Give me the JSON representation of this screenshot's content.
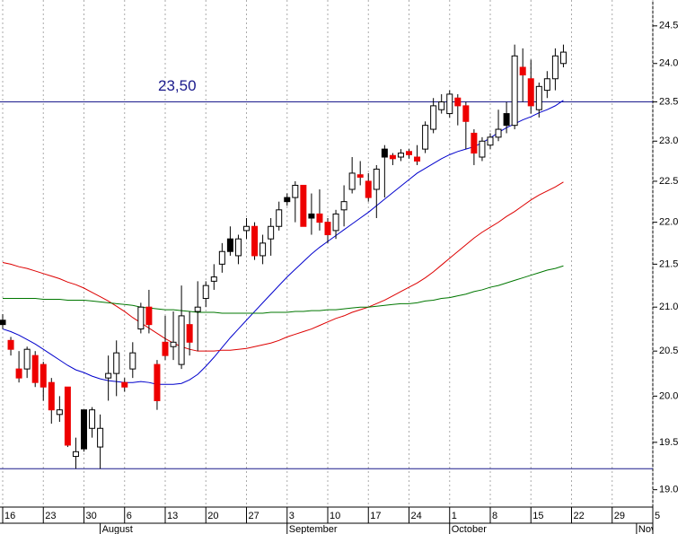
{
  "chart_data": {
    "type": "candlestick",
    "categories": [
      "16",
      null,
      null,
      null,
      null,
      "23",
      null,
      null,
      null,
      null,
      "30",
      null,
      null,
      null,
      null,
      "6",
      null,
      null,
      null,
      null,
      "13",
      null,
      null,
      null,
      null,
      "20",
      null,
      null,
      null,
      null,
      "27",
      null,
      null,
      null,
      null,
      "3",
      null,
      null,
      null,
      null,
      "10",
      null,
      null,
      null,
      null,
      "17",
      null,
      null,
      null,
      null,
      "24",
      null,
      null,
      null,
      null,
      "1",
      null,
      null,
      null,
      null,
      "8",
      null,
      null,
      null,
      null,
      "15",
      null,
      null,
      null,
      null,
      "22",
      null,
      null,
      null,
      null,
      "29",
      null,
      null,
      null,
      null,
      "5"
    ],
    "months": [
      {
        "label": "August",
        "index": 12
      },
      {
        "label": "September",
        "index": 35
      },
      {
        "label": "October",
        "index": 55
      },
      {
        "label": "November",
        "index": 78
      }
    ],
    "open": [
      20.85,
      20.62,
      20.3,
      20.3,
      20.45,
      20.35,
      20.15,
      19.8,
      20.1,
      19.35,
      19.85,
      19.65,
      19.45,
      20.2,
      20.25,
      20.15,
      20.3,
      20.75,
      21.0,
      20.35,
      20.6,
      20.55,
      20.35,
      20.8,
      20.95,
      21.1,
      21.3,
      21.5,
      21.8,
      21.6,
      21.9,
      21.95,
      21.6,
      21.8,
      21.95,
      22.3,
      22.3,
      22.45,
      22.1,
      22.1,
      22.0,
      21.9,
      22.15,
      22.4,
      22.58,
      22.5,
      22.4,
      22.9,
      22.82,
      22.8,
      22.87,
      22.8,
      22.9,
      23.15,
      23.4,
      23.35,
      23.55,
      23.45,
      23.1,
      22.8,
      22.95,
      23.05,
      23.35,
      23.2,
      23.95,
      23.8,
      23.4,
      23.65,
      23.8,
      24.0,
      null,
      null,
      null,
      null,
      null,
      null,
      null,
      null,
      null,
      null,
      null
    ],
    "high": [
      20.92,
      20.66,
      20.5,
      20.55,
      20.5,
      20.38,
      20.2,
      20.0,
      20.1,
      19.55,
      19.85,
      19.88,
      19.8,
      20.45,
      20.62,
      20.2,
      20.6,
      21.05,
      21.2,
      20.4,
      20.9,
      20.95,
      21.25,
      20.95,
      21.3,
      21.3,
      21.5,
      21.75,
      21.95,
      21.85,
      22.05,
      22.0,
      21.85,
      22.05,
      22.25,
      22.35,
      22.5,
      22.45,
      22.35,
      22.4,
      22.05,
      22.15,
      22.45,
      22.8,
      22.75,
      22.6,
      22.7,
      22.95,
      22.85,
      22.9,
      22.9,
      22.95,
      23.25,
      23.55,
      23.6,
      23.65,
      23.6,
      23.5,
      23.15,
      23.05,
      23.1,
      23.4,
      23.5,
      24.25,
      24.2,
      24.05,
      23.75,
      23.9,
      24.2,
      24.25,
      null,
      null,
      null,
      null,
      null,
      null,
      null,
      null,
      null,
      null,
      null
    ],
    "low": [
      20.75,
      20.45,
      20.15,
      20.2,
      20.1,
      19.95,
      19.7,
      19.72,
      19.45,
      19.22,
      19.4,
      19.55,
      19.22,
      19.95,
      20.0,
      20.05,
      20.2,
      20.7,
      20.7,
      19.85,
      20.4,
      20.4,
      20.3,
      20.45,
      20.5,
      21.0,
      21.2,
      21.4,
      21.6,
      21.5,
      21.8,
      21.55,
      21.5,
      21.6,
      21.9,
      22.2,
      22.0,
      21.95,
      21.85,
      21.9,
      21.75,
      21.8,
      21.95,
      22.35,
      22.45,
      22.25,
      22.05,
      22.3,
      22.7,
      22.75,
      22.78,
      22.7,
      22.85,
      23.1,
      23.35,
      23.3,
      23.2,
      22.9,
      22.7,
      22.75,
      22.9,
      23.0,
      23.1,
      23.15,
      23.5,
      23.35,
      23.3,
      23.55,
      23.65,
      23.95,
      null,
      null,
      null,
      null,
      null,
      null,
      null,
      null,
      null,
      null,
      null
    ],
    "close": [
      20.8,
      20.52,
      20.2,
      20.52,
      20.15,
      20.1,
      19.85,
      19.85,
      19.47,
      19.4,
      19.43,
      19.85,
      19.65,
      20.25,
      20.48,
      20.1,
      20.48,
      21.0,
      20.8,
      19.95,
      20.45,
      20.6,
      20.9,
      20.6,
      21.0,
      21.25,
      21.35,
      21.65,
      21.65,
      21.8,
      21.95,
      21.6,
      21.75,
      21.95,
      22.15,
      22.25,
      22.45,
      21.95,
      22.05,
      22.0,
      21.85,
      22.1,
      22.25,
      22.6,
      22.55,
      22.3,
      22.65,
      22.8,
      22.78,
      22.85,
      22.83,
      22.75,
      23.2,
      23.45,
      23.5,
      23.6,
      23.45,
      23.25,
      22.85,
      23.0,
      23.05,
      23.15,
      23.2,
      24.1,
      23.85,
      23.45,
      23.7,
      23.8,
      24.1,
      24.15,
      null,
      null,
      null,
      null,
      null,
      null,
      null,
      null,
      null,
      null,
      null
    ],
    "candle_colors": [
      "#000",
      "#e00",
      "#e00",
      "#fff",
      "#e00",
      "#e00",
      "#e00",
      "#fff",
      "#e00",
      "#fff",
      "#000",
      "#fff",
      "#fff",
      "#fff",
      "#fff",
      "#e00",
      "#fff",
      "#fff",
      "#e00",
      "#e00",
      "#e00",
      "#fff",
      "#fff",
      "#e00",
      "#fff",
      "#fff",
      "#fff",
      "#fff",
      "#000",
      "#fff",
      "#fff",
      "#e00",
      "#fff",
      "#fff",
      "#fff",
      "#000",
      "#fff",
      "#e00",
      "#000",
      "#e00",
      "#e00",
      "#fff",
      "#fff",
      "#fff",
      "#e00",
      "#e00",
      "#fff",
      "#000",
      "#e00",
      "#fff",
      "#e00",
      "#e00",
      "#fff",
      "#fff",
      "#fff",
      "#fff",
      "#e00",
      "#e00",
      "#e00",
      "#fff",
      "#fff",
      "#fff",
      "#000",
      "#fff",
      "#e00",
      "#e00",
      "#fff",
      "#fff",
      "#fff",
      "#fff",
      null,
      null,
      null,
      null,
      null,
      null,
      null,
      null,
      null,
      null,
      null
    ],
    "lines": [
      {
        "color": "#0000cc",
        "values": [
          20.75,
          20.72,
          20.68,
          20.63,
          20.58,
          20.52,
          20.46,
          20.4,
          20.34,
          20.29,
          20.26,
          20.22,
          20.19,
          20.17,
          20.16,
          20.15,
          20.15,
          20.16,
          20.15,
          20.13,
          20.13,
          20.13,
          20.14,
          20.18,
          20.24,
          20.33,
          20.43,
          20.54,
          20.65,
          20.75,
          20.85,
          20.95,
          21.05,
          21.15,
          21.25,
          21.35,
          21.44,
          21.53,
          21.62,
          21.7,
          21.77,
          21.84,
          21.91,
          21.98,
          22.05,
          22.12,
          22.2,
          22.28,
          22.36,
          22.44,
          22.52,
          22.6,
          22.66,
          22.72,
          22.78,
          22.83,
          22.87,
          22.9,
          22.93,
          22.98,
          23.04,
          23.11,
          23.17,
          23.22,
          23.27,
          23.31,
          23.36,
          23.4,
          23.45,
          23.52,
          null,
          null,
          null,
          null,
          null,
          null,
          null,
          null,
          null,
          null,
          null
        ]
      },
      {
        "color": "#dd0000",
        "values": [
          21.52,
          21.5,
          21.47,
          21.45,
          21.42,
          21.39,
          21.36,
          21.33,
          21.29,
          21.26,
          21.22,
          21.17,
          21.12,
          21.07,
          21.01,
          20.95,
          20.88,
          20.82,
          20.76,
          20.7,
          20.64,
          20.59,
          20.55,
          20.52,
          20.5,
          20.5,
          20.5,
          20.51,
          20.51,
          20.52,
          20.53,
          20.55,
          20.57,
          20.59,
          20.62,
          20.66,
          20.69,
          20.72,
          20.75,
          20.79,
          20.83,
          20.87,
          20.9,
          20.94,
          20.97,
          21.0,
          21.04,
          21.08,
          21.13,
          21.18,
          21.23,
          21.28,
          21.34,
          21.41,
          21.49,
          21.57,
          21.65,
          21.73,
          21.81,
          21.88,
          21.94,
          22.0,
          22.07,
          22.13,
          22.2,
          22.27,
          22.33,
          22.38,
          22.43,
          22.49,
          null,
          null,
          null,
          null,
          null,
          null,
          null,
          null,
          null,
          null,
          null
        ]
      },
      {
        "color": "#007700",
        "values": [
          21.1,
          21.1,
          21.1,
          21.1,
          21.1,
          21.09,
          21.09,
          21.09,
          21.08,
          21.08,
          21.08,
          21.07,
          21.06,
          21.05,
          21.04,
          21.03,
          21.02,
          21.0,
          20.99,
          20.98,
          20.97,
          20.97,
          20.96,
          20.95,
          20.94,
          20.94,
          20.94,
          20.93,
          20.93,
          20.93,
          20.93,
          20.93,
          20.93,
          20.94,
          20.94,
          20.94,
          20.95,
          20.95,
          20.96,
          20.96,
          20.97,
          20.97,
          20.98,
          20.99,
          21.0,
          21.0,
          21.01,
          21.02,
          21.03,
          21.04,
          21.04,
          21.05,
          21.07,
          21.08,
          21.1,
          21.11,
          21.13,
          21.15,
          21.18,
          21.2,
          21.23,
          21.25,
          21.28,
          21.31,
          21.34,
          21.37,
          21.4,
          21.43,
          21.45,
          21.48,
          null,
          null,
          null,
          null,
          null,
          null,
          null,
          null,
          null,
          null,
          null
        ]
      }
    ],
    "hlines": [
      {
        "value": 23.5,
        "label": "23,50",
        "color": "#1a1a8c"
      },
      {
        "value": 19.22,
        "color": "#1a1a8c"
      }
    ],
    "log": true,
    "grid": "x",
    "ylim": [
      18.82,
      24.85
    ],
    "yticks": [
      {
        "value": 19,
        "label": "19.0"
      },
      19.5,
      {
        "value": 20,
        "label": "20.0"
      },
      20.5,
      {
        "value": 21,
        "label": "21.0"
      },
      21.5,
      {
        "value": 22,
        "label": "22.0"
      },
      22.5,
      {
        "value": 23,
        "label": "23.0"
      },
      23.5,
      {
        "value": 24,
        "label": "24.0"
      },
      24.5
    ]
  }
}
